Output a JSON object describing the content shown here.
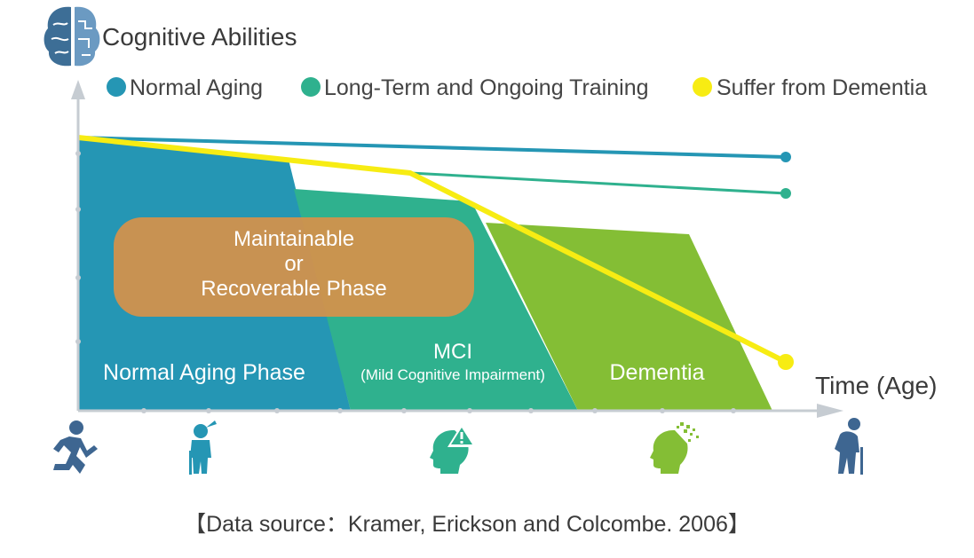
{
  "title": "Cognitive Abilities",
  "x_axis_label": "Time (Age)",
  "legend": [
    {
      "label": "Normal Aging",
      "color": "#2596b4"
    },
    {
      "label": "Long-Term and Ongoing Training",
      "color": "#2fb18e"
    },
    {
      "label": "Suffer from Dementia",
      "color": "#f7ec13"
    }
  ],
  "phases": [
    {
      "label": "Normal Aging Phase",
      "color": "#2596b4"
    },
    {
      "label": "MCI",
      "sublabel": "(Mild Cognitive Impairment)",
      "color": "#2fb18e"
    },
    {
      "label": "Dementia",
      "color": "#84be35"
    }
  ],
  "highlight_box": {
    "lines": [
      "Maintainable",
      "or",
      "Recoverable Phase"
    ],
    "color": "#d5914a"
  },
  "icons": [
    "running-person-icon",
    "elderly-person-with-cane-icon",
    "head-with-warning-icon",
    "head-dissolving-icon",
    "hunched-elderly-person-with-cane-icon"
  ],
  "source": "【Data source：Kramer, Erickson and Colcombe. 2006】",
  "colors": {
    "axis": "#c6ccd2",
    "brain_left": "#3d6e96",
    "brain_right": "#6b9ac2",
    "person": "#3e6691"
  }
}
